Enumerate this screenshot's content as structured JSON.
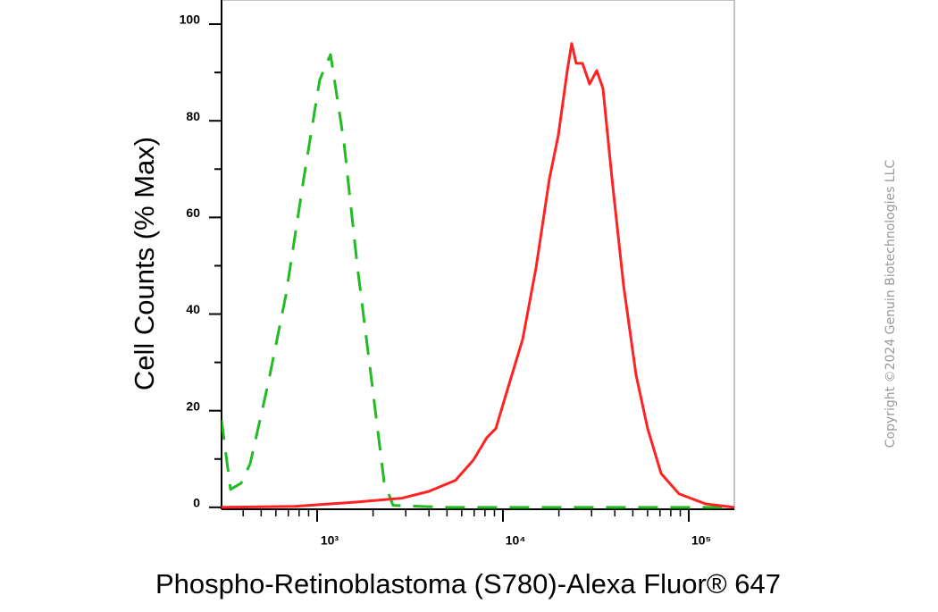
{
  "chart_data": {
    "type": "line",
    "xlabel": "Phospho-Retinoblastoma (S780)-Alexa Fluor® 647",
    "ylabel": "Cell Counts (% Max)",
    "xscale": "log",
    "xlim": [
      306,
      175800
    ],
    "ylim": [
      -0.4,
      105
    ],
    "xticks": [
      {
        "value": 1000,
        "label": "10³"
      },
      {
        "value": 10000,
        "label": "10⁴"
      },
      {
        "value": 100000,
        "label": "10⁵"
      }
    ],
    "xminorticks": [
      400,
      500,
      600,
      700,
      800,
      900,
      2000,
      3000,
      4000,
      5000,
      6000,
      7000,
      8000,
      9000,
      20000,
      30000,
      40000,
      50000,
      60000,
      70000,
      80000,
      90000
    ],
    "yticks": [
      0,
      20,
      40,
      60,
      80,
      100
    ],
    "yminorticks": [
      10,
      30,
      50,
      70,
      90
    ],
    "series": [
      {
        "color": "#22bb22",
        "linestyle": "dashed",
        "x": [
          306,
          342,
          390,
          436,
          545,
          680,
          847,
          1033,
          1181,
          1394,
          1645,
          1942,
          2294,
          2564,
          4977,
          175800
        ],
        "values": [
          18,
          3.7,
          5,
          9,
          25.6,
          44,
          68,
          88.5,
          93.7,
          75.6,
          50,
          27.8,
          5.2,
          0.4,
          0,
          0
        ]
      },
      {
        "color": "#ff2222",
        "linestyle": "solid",
        "x": [
          306,
          759,
          1645,
          2864,
          3990,
          5559,
          6935,
          8185,
          9153,
          10810,
          12770,
          15070,
          17780,
          19860,
          22190,
          23440,
          24780,
          26790,
          29270,
          31980,
          34530,
          38620,
          44580,
          52030,
          60070,
          70960,
          88530,
          123400,
          175800
        ],
        "values": [
          0,
          0.2,
          1.1,
          1.9,
          3.3,
          5.6,
          9.8,
          14.4,
          16.3,
          25.6,
          34.8,
          49.6,
          68,
          77,
          90.4,
          96,
          91.9,
          91.9,
          87.6,
          90.4,
          86.7,
          68,
          45.9,
          27.4,
          16.3,
          7,
          2.8,
          0.7,
          0
        ]
      }
    ]
  },
  "copyright": "Copyright ©2024 Genuin Biotechnologies LLC"
}
